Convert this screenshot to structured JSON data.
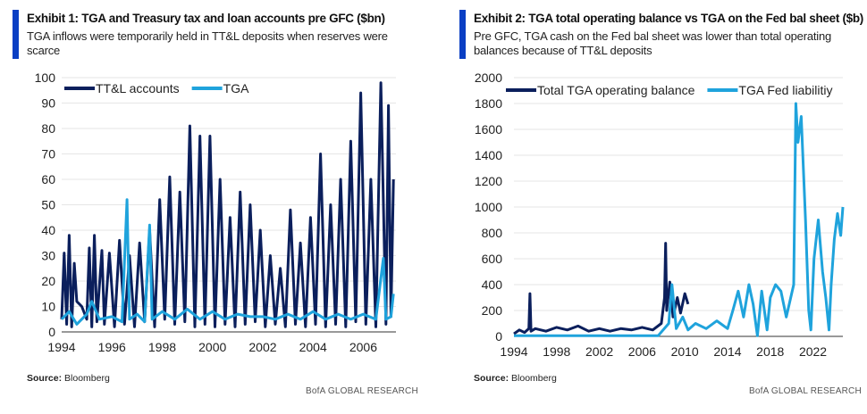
{
  "colors": {
    "dark": "#0b1f5c",
    "light": "#1fa3dc",
    "accent": "#0a3fc4",
    "grid": "#e6e6e6"
  },
  "brand": "BofA GLOBAL RESEARCH",
  "chart_data": [
    {
      "type": "line",
      "title": "Exhibit 1: TGA and Treasury tax and loan accounts pre GFC ($bn)",
      "subtitle": "TGA inflows were temporarily held in TT&L deposits when reserves were scarce",
      "source_label": "Source:",
      "source": "Bloomberg",
      "xlim": [
        1994,
        2007.3
      ],
      "ylim": [
        0,
        100
      ],
      "yticks": [
        0,
        10,
        20,
        30,
        40,
        50,
        60,
        70,
        80,
        90,
        100
      ],
      "xticks": [
        1994,
        1996,
        1998,
        2000,
        2002,
        2004,
        2006
      ],
      "grid": true,
      "legend": "top-left",
      "series": [
        {
          "name": "TT&L accounts",
          "color": "#0b1f5c",
          "points": [
            [
              1994,
              5
            ],
            [
              1994.1,
              31
            ],
            [
              1994.2,
              3
            ],
            [
              1994.3,
              38
            ],
            [
              1994.4,
              2
            ],
            [
              1994.5,
              27
            ],
            [
              1994.6,
              12
            ],
            [
              1994.8,
              10
            ],
            [
              1995,
              5
            ],
            [
              1995.1,
              33
            ],
            [
              1995.2,
              2
            ],
            [
              1995.3,
              38
            ],
            [
              1995.4,
              4
            ],
            [
              1995.6,
              32
            ],
            [
              1995.7,
              3
            ],
            [
              1995.9,
              31
            ],
            [
              1996.1,
              2
            ],
            [
              1996.3,
              36
            ],
            [
              1996.5,
              3
            ],
            [
              1996.7,
              30
            ],
            [
              1996.9,
              2
            ],
            [
              1997.1,
              35
            ],
            [
              1997.3,
              4
            ],
            [
              1997.5,
              40
            ],
            [
              1997.7,
              2
            ],
            [
              1997.9,
              52
            ],
            [
              1998.1,
              5
            ],
            [
              1998.3,
              61
            ],
            [
              1998.5,
              3
            ],
            [
              1998.7,
              55
            ],
            [
              1998.9,
              4
            ],
            [
              1999.1,
              81
            ],
            [
              1999.3,
              2
            ],
            [
              1999.5,
              77
            ],
            [
              1999.7,
              3
            ],
            [
              1999.9,
              77
            ],
            [
              2000.1,
              2
            ],
            [
              2000.3,
              60
            ],
            [
              2000.5,
              3
            ],
            [
              2000.7,
              45
            ],
            [
              2000.9,
              2
            ],
            [
              2001.1,
              55
            ],
            [
              2001.3,
              3
            ],
            [
              2001.5,
              50
            ],
            [
              2001.7,
              4
            ],
            [
              2001.9,
              40
            ],
            [
              2002.1,
              2
            ],
            [
              2002.3,
              30
            ],
            [
              2002.5,
              3
            ],
            [
              2002.7,
              25
            ],
            [
              2002.9,
              2
            ],
            [
              2003.1,
              48
            ],
            [
              2003.3,
              3
            ],
            [
              2003.5,
              35
            ],
            [
              2003.7,
              2
            ],
            [
              2003.9,
              45
            ],
            [
              2004.1,
              3
            ],
            [
              2004.3,
              70
            ],
            [
              2004.5,
              2
            ],
            [
              2004.7,
              50
            ],
            [
              2004.9,
              3
            ],
            [
              2005.1,
              60
            ],
            [
              2005.3,
              2
            ],
            [
              2005.5,
              75
            ],
            [
              2005.7,
              4
            ],
            [
              2005.9,
              94
            ],
            [
              2006.1,
              3
            ],
            [
              2006.3,
              60
            ],
            [
              2006.5,
              2
            ],
            [
              2006.7,
              98
            ],
            [
              2006.9,
              3
            ],
            [
              2007,
              89
            ],
            [
              2007.1,
              6
            ],
            [
              2007.2,
              60
            ]
          ]
        },
        {
          "name": "TGA",
          "color": "#1fa3dc",
          "points": [
            [
              1994,
              5
            ],
            [
              1994.3,
              8
            ],
            [
              1994.6,
              3
            ],
            [
              1995,
              7
            ],
            [
              1995.2,
              12
            ],
            [
              1995.5,
              5
            ],
            [
              1996,
              6
            ],
            [
              1996.4,
              4
            ],
            [
              1996.6,
              52
            ],
            [
              1996.7,
              5
            ],
            [
              1997,
              7
            ],
            [
              1997.3,
              4
            ],
            [
              1997.5,
              42
            ],
            [
              1997.6,
              5
            ],
            [
              1998,
              8
            ],
            [
              1998.5,
              5
            ],
            [
              1999,
              9
            ],
            [
              1999.5,
              5
            ],
            [
              2000,
              8
            ],
            [
              2000.5,
              5
            ],
            [
              2001,
              7
            ],
            [
              2001.5,
              6
            ],
            [
              2002,
              6
            ],
            [
              2002.5,
              5
            ],
            [
              2003,
              7
            ],
            [
              2003.5,
              5
            ],
            [
              2004,
              8
            ],
            [
              2004.5,
              5
            ],
            [
              2005,
              7
            ],
            [
              2005.5,
              5
            ],
            [
              2006,
              7
            ],
            [
              2006.5,
              5
            ],
            [
              2006.8,
              29
            ],
            [
              2006.9,
              5
            ],
            [
              2007.1,
              6
            ],
            [
              2007.2,
              15
            ]
          ]
        }
      ]
    },
    {
      "type": "line",
      "title": "Exhibit 2: TGA total operating balance vs TGA on the Fed bal sheet ($b)",
      "subtitle": "Pre GFC, TGA cash on the Fed bal sheet was lower than total operating balances because of TT&L deposits",
      "source_label": "Source:",
      "source": "Bloomberg",
      "xlim": [
        1994,
        2024.8
      ],
      "ylim": [
        0,
        2000
      ],
      "yticks": [
        0,
        200,
        400,
        600,
        800,
        1000,
        1200,
        1400,
        1600,
        1800,
        2000
      ],
      "xticks": [
        1994,
        1998,
        2002,
        2006,
        2010,
        2014,
        2018,
        2022
      ],
      "grid": true,
      "legend": "top-left",
      "series": [
        {
          "name": "Total TGA operating balance",
          "color": "#0b1f5c",
          "points": [
            [
              1994,
              20
            ],
            [
              1994.5,
              50
            ],
            [
              1995,
              30
            ],
            [
              1995.4,
              60
            ],
            [
              1995.5,
              330
            ],
            [
              1995.6,
              40
            ],
            [
              1996,
              60
            ],
            [
              1997,
              40
            ],
            [
              1998,
              70
            ],
            [
              1999,
              50
            ],
            [
              2000,
              80
            ],
            [
              2001,
              40
            ],
            [
              2002,
              60
            ],
            [
              2003,
              40
            ],
            [
              2004,
              60
            ],
            [
              2005,
              50
            ],
            [
              2006,
              70
            ],
            [
              2007,
              50
            ],
            [
              2007.8,
              100
            ],
            [
              2008.1,
              300
            ],
            [
              2008.2,
              720
            ],
            [
              2008.3,
              200
            ],
            [
              2008.6,
              420
            ],
            [
              2008.9,
              150
            ],
            [
              2009.3,
              300
            ],
            [
              2009.6,
              180
            ],
            [
              2010,
              330
            ],
            [
              2010.3,
              250
            ]
          ]
        },
        {
          "name": "TGA Fed liabilitiy",
          "color": "#1fa3dc",
          "points": [
            [
              1994,
              5
            ],
            [
              2000,
              5
            ],
            [
              2007.5,
              5
            ],
            [
              2008.5,
              100
            ],
            [
              2008.8,
              400
            ],
            [
              2009.2,
              60
            ],
            [
              2009.8,
              150
            ],
            [
              2010.3,
              50
            ],
            [
              2011,
              100
            ],
            [
              2012,
              60
            ],
            [
              2013,
              120
            ],
            [
              2014,
              60
            ],
            [
              2014.5,
              200
            ],
            [
              2015,
              350
            ],
            [
              2015.5,
              150
            ],
            [
              2016,
              400
            ],
            [
              2016.4,
              250
            ],
            [
              2016.8,
              5
            ],
            [
              2017.2,
              350
            ],
            [
              2017.7,
              50
            ],
            [
              2018,
              300
            ],
            [
              2018.5,
              400
            ],
            [
              2019,
              350
            ],
            [
              2019.5,
              150
            ],
            [
              2020.2,
              400
            ],
            [
              2020.4,
              1800
            ],
            [
              2020.6,
              1500
            ],
            [
              2020.9,
              1700
            ],
            [
              2021.3,
              900
            ],
            [
              2021.6,
              200
            ],
            [
              2021.8,
              50
            ],
            [
              2022.1,
              600
            ],
            [
              2022.5,
              900
            ],
            [
              2022.9,
              500
            ],
            [
              2023.2,
              300
            ],
            [
              2023.5,
              50
            ],
            [
              2023.7,
              400
            ],
            [
              2024,
              750
            ],
            [
              2024.3,
              950
            ],
            [
              2024.6,
              780
            ],
            [
              2024.8,
              1000
            ]
          ]
        }
      ]
    }
  ]
}
